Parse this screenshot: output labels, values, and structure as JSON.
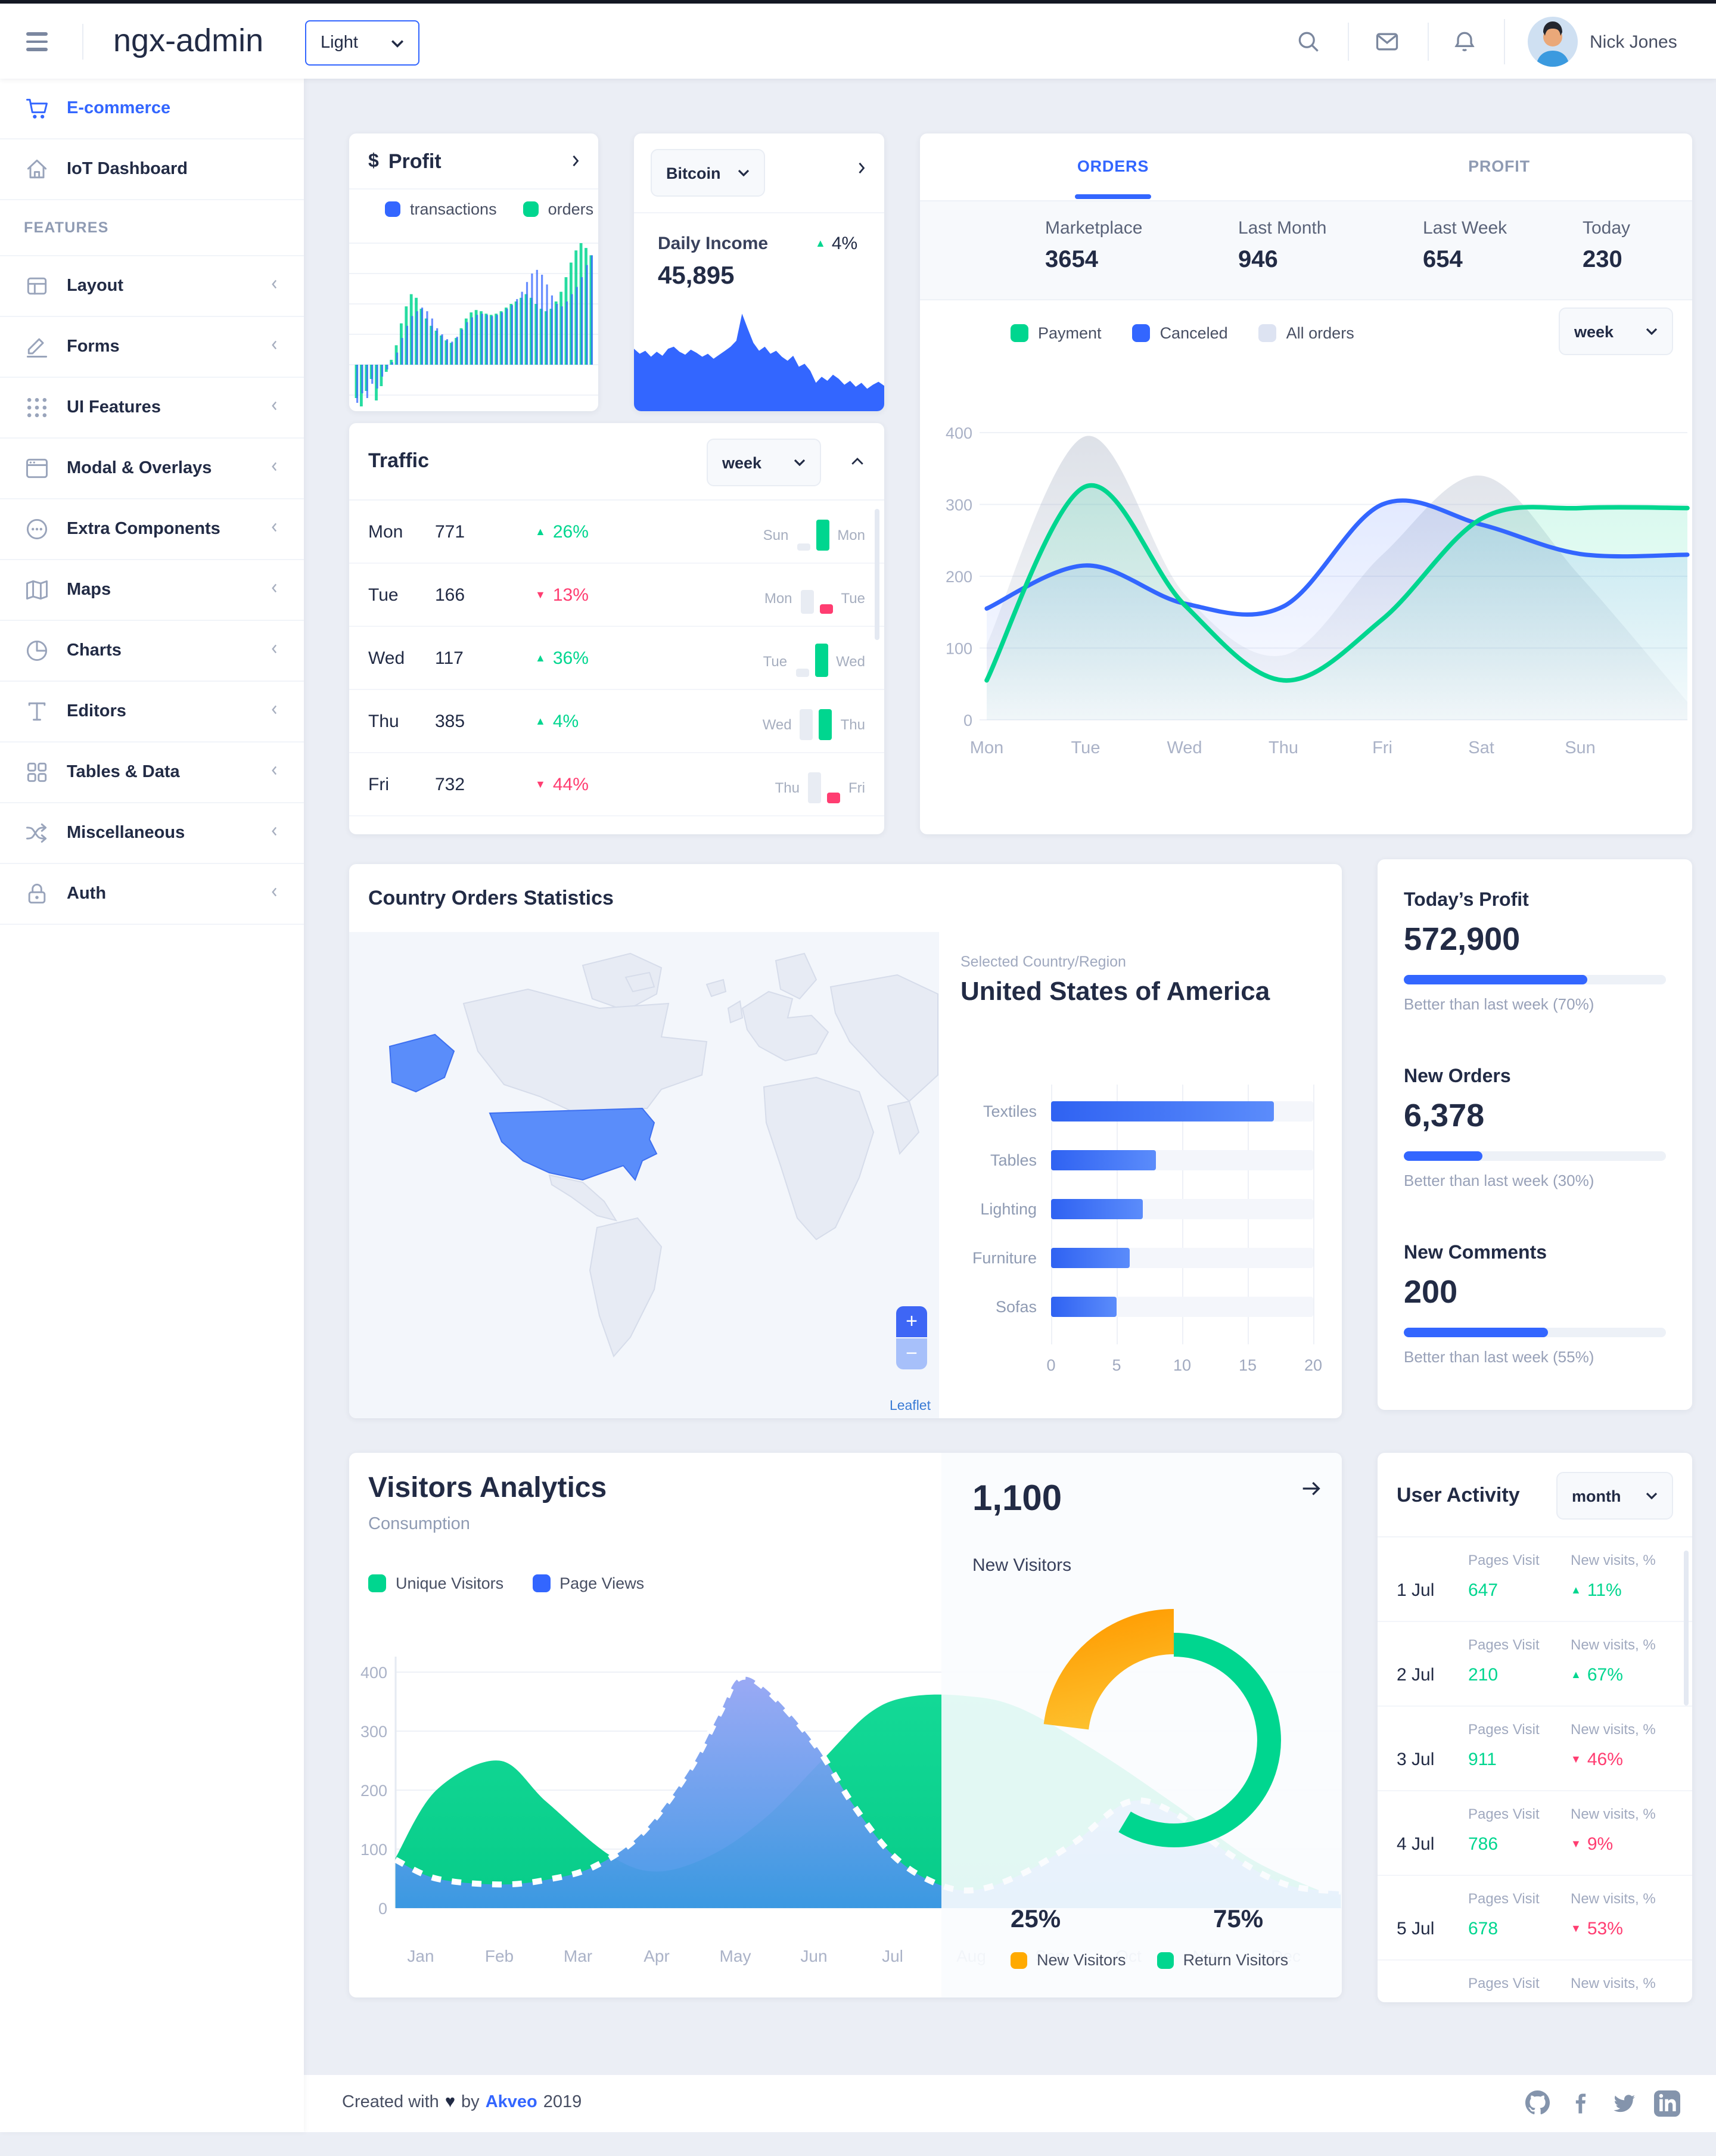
{
  "header": {
    "app_title": "ngx-admin",
    "theme_select": "Light",
    "user_name": "Nick Jones"
  },
  "sidebar": {
    "items": [
      {
        "label": "E-commerce",
        "icon": "shopping-cart-icon",
        "active": true,
        "expandable": false
      },
      {
        "label": "IoT Dashboard",
        "icon": "home-icon",
        "active": false,
        "expandable": false
      },
      {
        "label": "FEATURES",
        "header": true
      },
      {
        "label": "Layout",
        "icon": "layout-icon",
        "expandable": true
      },
      {
        "label": "Forms",
        "icon": "edit-icon",
        "expandable": true
      },
      {
        "label": "UI Features",
        "icon": "keypad-icon",
        "expandable": true
      },
      {
        "label": "Modal & Overlays",
        "icon": "browser-window-icon",
        "expandable": true
      },
      {
        "label": "Extra Components",
        "icon": "message-circle-icon",
        "expandable": true
      },
      {
        "label": "Maps",
        "icon": "map-icon",
        "expandable": true
      },
      {
        "label": "Charts",
        "icon": "pie-chart-icon",
        "expandable": true
      },
      {
        "label": "Editors",
        "icon": "text-icon",
        "expandable": true
      },
      {
        "label": "Tables & Data",
        "icon": "grid-icon",
        "expandable": true
      },
      {
        "label": "Miscellaneous",
        "icon": "shuffle-icon",
        "expandable": true
      },
      {
        "label": "Auth",
        "icon": "lock-icon",
        "expandable": true
      }
    ]
  },
  "profit_card": {
    "currency_symbol": "$",
    "title": "Profit",
    "legend": [
      {
        "label": "transactions",
        "color": "#3366ff"
      },
      {
        "label": "orders",
        "color": "#00d68f"
      }
    ]
  },
  "bitcoin_card": {
    "select_value": "Bitcoin",
    "label": "Daily Income",
    "value": "45,895",
    "delta": "4%",
    "delta_dir": "up"
  },
  "orders_card": {
    "tabs": [
      {
        "label": "ORDERS",
        "active": true
      },
      {
        "label": "PROFIT",
        "active": false
      }
    ],
    "stats": [
      {
        "label": "Marketplace",
        "value": "3654"
      },
      {
        "label": "Last Month",
        "value": "946"
      },
      {
        "label": "Last Week",
        "value": "654"
      },
      {
        "label": "Today",
        "value": "230"
      }
    ],
    "legend": [
      {
        "label": "Payment",
        "color": "#00d68f"
      },
      {
        "label": "Canceled",
        "color": "#3366ff"
      },
      {
        "label": "All orders",
        "color": "#dde3f2"
      }
    ],
    "period_select": "week"
  },
  "traffic_card": {
    "title": "Traffic",
    "period_select": "week",
    "rows": [
      {
        "day": "Mon",
        "value": "771",
        "delta": "26%",
        "dir": "up",
        "prev_day": "Sun",
        "prev_h": 6,
        "cur_h": 26,
        "cur_color": "#00d68f"
      },
      {
        "day": "Tue",
        "value": "166",
        "delta": "13%",
        "dir": "down",
        "prev_day": "Mon",
        "prev_h": 20,
        "cur_h": 8,
        "cur_color": "#ff3d71"
      },
      {
        "day": "Wed",
        "value": "117",
        "delta": "36%",
        "dir": "up",
        "prev_day": "Tue",
        "prev_h": 7,
        "cur_h": 28,
        "cur_color": "#00d68f"
      },
      {
        "day": "Thu",
        "value": "385",
        "delta": "4%",
        "dir": "up",
        "prev_day": "Wed",
        "prev_h": 26,
        "cur_h": 26,
        "cur_color": "#00d68f"
      },
      {
        "day": "Fri",
        "value": "732",
        "delta": "44%",
        "dir": "down",
        "prev_day": "Thu",
        "prev_h": 26,
        "cur_h": 9,
        "cur_color": "#ff3d71"
      },
      {
        "day": "",
        "value": "",
        "delta": "",
        "dir": "up",
        "prev_day": "Fri",
        "prev_h": 6,
        "cur_h": 24,
        "cur_color": "#00d68f",
        "partial": true
      }
    ]
  },
  "country_card": {
    "title": "Country Orders Statistics",
    "selected_label": "Selected Country/Region",
    "selected_country": "United States of America",
    "map_zoom_in": "+",
    "map_zoom_out": "−",
    "map_attribution": "Leaflet"
  },
  "summary_card": {
    "sections": [
      {
        "title": "Today’s Profit",
        "value": "572,900",
        "percent": 70,
        "caption": "Better than last week (70%)"
      },
      {
        "title": "New Orders",
        "value": "6,378",
        "percent": 30,
        "caption": "Better than last week (30%)"
      },
      {
        "title": "New Comments",
        "value": "200",
        "percent": 55,
        "caption": "Better than last week (55%)"
      }
    ]
  },
  "visitors_card": {
    "title": "Visitors Analytics",
    "subtitle": "Consumption",
    "legend": [
      {
        "label": "Unique Visitors",
        "color": "#00d68f"
      },
      {
        "label": "Page Views",
        "color": "#3366ff"
      }
    ]
  },
  "new_visitors_panel": {
    "value": "1,100",
    "label": "New Visitors",
    "new_pct": "25%",
    "return_pct": "75%",
    "legend": [
      {
        "label": "New Visitors",
        "color": "#ffaa00"
      },
      {
        "label": "Return Visitors",
        "color": "#00d68f"
      }
    ]
  },
  "user_activity_card": {
    "title": "User Activity",
    "period_select": "month",
    "col_visits": "Pages Visit",
    "col_new": "New visits, %",
    "rows": [
      {
        "date": "1 Jul",
        "visits": "647",
        "delta": "11%",
        "dir": "up"
      },
      {
        "date": "2 Jul",
        "visits": "210",
        "delta": "67%",
        "dir": "up"
      },
      {
        "date": "3 Jul",
        "visits": "911",
        "delta": "46%",
        "dir": "down"
      },
      {
        "date": "4 Jul",
        "visits": "786",
        "delta": "9%",
        "dir": "down"
      },
      {
        "date": "5 Jul",
        "visits": "678",
        "delta": "53%",
        "dir": "down"
      },
      {
        "date": "",
        "visits": "",
        "delta": "",
        "dir": "up",
        "partial": true
      }
    ]
  },
  "footer": {
    "prefix": "Created with",
    "heart": "♥",
    "mid": "by",
    "brand": "Akveo",
    "year": "2019",
    "social": [
      "github-icon",
      "facebook-icon",
      "twitter-icon",
      "linkedin-icon"
    ]
  },
  "chart_data": [
    {
      "id": "profit_mini",
      "type": "bar",
      "title": "Profit",
      "ylim": [
        -35,
        100
      ],
      "series": [
        {
          "name": "orders",
          "color": "#00d68f",
          "values": [
            -28,
            -35,
            -22,
            -12,
            -30,
            -18,
            -6,
            4,
            16,
            34,
            48,
            58,
            55,
            46,
            38,
            32,
            28,
            24,
            20,
            18,
            22,
            30,
            38,
            43,
            45,
            44,
            42,
            41,
            42,
            44,
            47,
            50,
            52,
            55,
            58,
            55,
            50,
            46,
            44,
            46,
            52,
            60,
            72,
            84,
            94,
            100,
            96,
            90
          ]
        },
        {
          "name": "transactions",
          "color": "#3366ff",
          "values": [
            -32,
            -24,
            -28,
            -16,
            -20,
            -10,
            -4,
            2,
            10,
            22,
            32,
            40,
            44,
            47,
            44,
            38,
            30,
            25,
            21,
            19,
            23,
            29,
            35,
            39,
            41,
            42,
            41,
            40,
            41,
            43,
            46,
            49,
            54,
            60,
            68,
            75,
            78,
            74,
            66,
            57,
            50,
            48,
            52,
            58,
            64,
            72,
            82,
            90
          ]
        }
      ]
    },
    {
      "id": "bitcoin_area",
      "type": "area",
      "title": "Daily Income",
      "color": "#3366ff",
      "ylim": [
        0,
        1
      ],
      "values": [
        0.6,
        0.55,
        0.58,
        0.52,
        0.57,
        0.53,
        0.6,
        0.62,
        0.57,
        0.54,
        0.59,
        0.56,
        0.52,
        0.55,
        0.5,
        0.54,
        0.58,
        0.62,
        0.68,
        0.95,
        0.8,
        0.66,
        0.58,
        0.62,
        0.55,
        0.58,
        0.52,
        0.48,
        0.53,
        0.42,
        0.45,
        0.38,
        0.26,
        0.32,
        0.28,
        0.34,
        0.3,
        0.24,
        0.28,
        0.22,
        0.26,
        0.2,
        0.24,
        0.27,
        0.23
      ]
    },
    {
      "id": "orders_week",
      "type": "line",
      "categories": [
        "Mon",
        "Tue",
        "Wed",
        "Thu",
        "Fri",
        "Sat",
        "Sun"
      ],
      "ylim": [
        0,
        400
      ],
      "yticks": [
        0,
        100,
        200,
        300,
        400
      ],
      "legend_position": "top",
      "series": [
        {
          "name": "All orders",
          "color": "#8f9bb3",
          "values": [
            105,
            395,
            175,
            90,
            230,
            340,
            200,
            25
          ]
        },
        {
          "name": "Canceled",
          "color": "#3366ff",
          "values": [
            155,
            215,
            162,
            158,
            300,
            272,
            231,
            230
          ]
        },
        {
          "name": "Payment",
          "color": "#00d68f",
          "values": [
            55,
            325,
            160,
            55,
            140,
            280,
            295,
            295
          ]
        }
      ]
    },
    {
      "id": "country_orders",
      "type": "bar",
      "orientation": "horizontal",
      "categories": [
        "Textiles",
        "Tables",
        "Lighting",
        "Furniture",
        "Sofas"
      ],
      "values": [
        17,
        8,
        7,
        6,
        5
      ],
      "xlim": [
        0,
        20
      ],
      "xticks": [
        0,
        5,
        10,
        15,
        20
      ],
      "color": "#3366ff"
    },
    {
      "id": "visitors",
      "type": "area",
      "categories": [
        "Jan",
        "Feb",
        "Mar",
        "Apr",
        "May",
        "Jun",
        "Jul",
        "Aug",
        "Sep",
        "Oct",
        "Nov",
        "Dec"
      ],
      "ylim": [
        0,
        400
      ],
      "yticks": [
        0,
        100,
        200,
        300,
        400
      ],
      "series": [
        {
          "name": "Unique Visitors",
          "color": "#00d68f",
          "points": [
            [
              -0.32,
              85
            ],
            [
              0.2,
              200
            ],
            [
              1,
              250
            ],
            [
              1.6,
              180
            ],
            [
              2.4,
              90
            ],
            [
              3,
              62
            ],
            [
              3.7,
              90
            ],
            [
              4.4,
              155
            ],
            [
              5.1,
              250
            ],
            [
              5.7,
              330
            ],
            [
              6.2,
              358
            ],
            [
              6.9,
              360
            ],
            [
              7.6,
              340
            ],
            [
              8.6,
              265
            ],
            [
              9.6,
              175
            ],
            [
              10.6,
              80
            ],
            [
              11.7,
              15
            ]
          ]
        },
        {
          "name": "Page Views",
          "color": "#3366ff",
          "points": [
            [
              -0.32,
              82
            ],
            [
              0.2,
              50
            ],
            [
              1,
              40
            ],
            [
              1.6,
              48
            ],
            [
              2.2,
              70
            ],
            [
              2.8,
              125
            ],
            [
              3.4,
              230
            ],
            [
              3.8,
              330
            ],
            [
              4.05,
              390
            ],
            [
              4.4,
              370
            ],
            [
              5,
              280
            ],
            [
              5.5,
              175
            ],
            [
              6,
              90
            ],
            [
              6.5,
              45
            ],
            [
              7,
              30
            ],
            [
              7.6,
              55
            ],
            [
              8.3,
              110
            ],
            [
              9,
              180
            ],
            [
              9.6,
              160
            ],
            [
              10.3,
              90
            ],
            [
              11,
              40
            ],
            [
              11.7,
              28
            ]
          ]
        }
      ]
    },
    {
      "id": "visitors_donut",
      "type": "pie",
      "slices": [
        {
          "label": "New Visitors",
          "value": 25,
          "color": "#ffaa00"
        },
        {
          "label": "Return Visitors",
          "value": 75,
          "color": "#00d68f"
        }
      ]
    }
  ]
}
